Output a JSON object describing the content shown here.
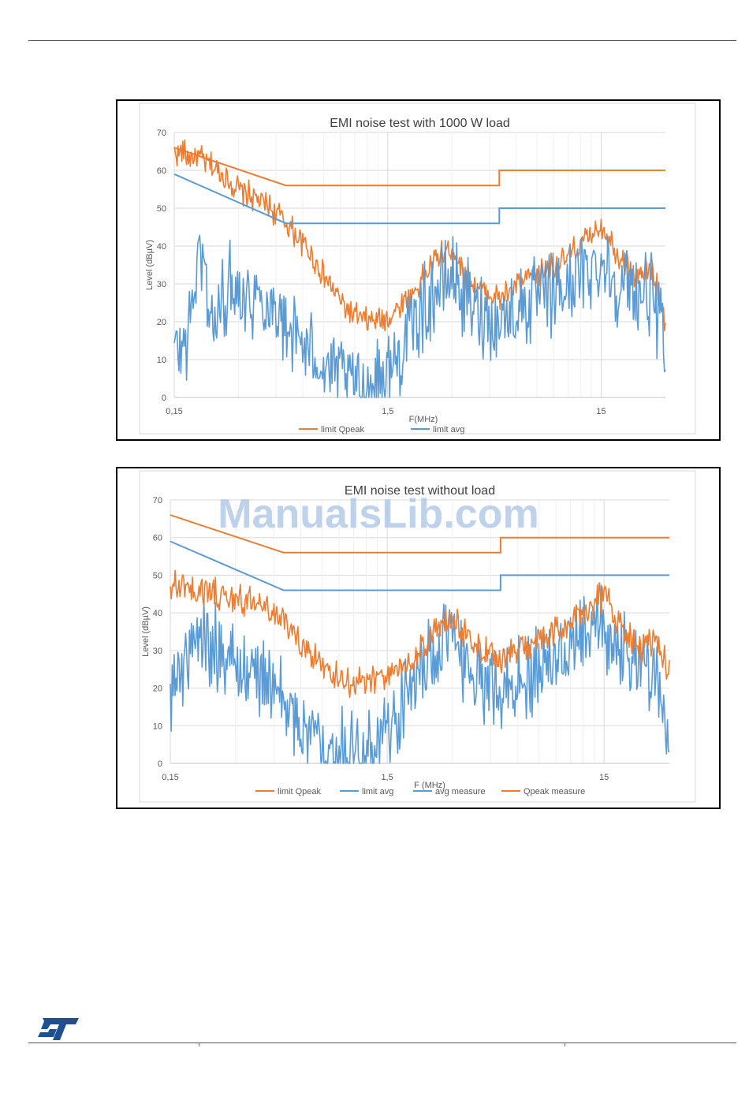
{
  "watermark": "ManualsLib.com",
  "logo": {
    "icon": "st-logo-icon",
    "color": "#1d4f91"
  },
  "colors": {
    "orange": "#ED7D31",
    "blue": "#5B9BD5"
  },
  "chart_data": [
    {
      "type": "line",
      "title": "EMI noise test with 1000 W load",
      "xlabel": "F(MHz)",
      "ylabel": "Level (dBµV)",
      "x_scale": "log",
      "xlim": [
        0.15,
        30
      ],
      "ylim": [
        0,
        70
      ],
      "yticks": [
        "0",
        "10",
        "20",
        "30",
        "40",
        "50",
        "60",
        "70"
      ],
      "xticks": [
        {
          "value": 0.15,
          "label": "0,15"
        },
        {
          "value": 1.5,
          "label": "1,5"
        },
        {
          "value": 15,
          "label": "15"
        }
      ],
      "grid": true,
      "legend_position": "bottom",
      "series": [
        {
          "name": "limit Qpeak",
          "color": "#ED7D31",
          "points": [
            [
              0.15,
              66
            ],
            [
              0.5,
              56
            ],
            [
              5,
              56
            ],
            [
              5,
              60
            ],
            [
              30,
              60
            ]
          ]
        },
        {
          "name": "limit avg",
          "color": "#5B9BD5",
          "points": [
            [
              0.15,
              59
            ],
            [
              0.5,
              46
            ],
            [
              5,
              46
            ],
            [
              5,
              50
            ],
            [
              30,
              50
            ]
          ]
        },
        {
          "color": "#ED7D31",
          "noisy": true,
          "spread": 8,
          "points": [
            [
              0.15,
              65
            ],
            [
              0.2,
              63
            ],
            [
              0.25,
              59
            ],
            [
              0.3,
              55
            ],
            [
              0.35,
              53
            ],
            [
              0.45,
              49
            ],
            [
              0.6,
              41
            ],
            [
              0.8,
              30
            ],
            [
              1.0,
              22
            ],
            [
              1.2,
              20
            ],
            [
              1.5,
              21
            ],
            [
              2,
              28
            ],
            [
              2.5,
              36
            ],
            [
              3,
              40
            ],
            [
              3.5,
              32
            ],
            [
              4,
              29
            ],
            [
              5,
              26
            ],
            [
              7,
              32
            ],
            [
              10,
              36
            ],
            [
              13,
              42
            ],
            [
              15,
              46
            ],
            [
              18,
              38
            ],
            [
              22,
              32
            ],
            [
              26,
              34
            ],
            [
              30,
              20
            ]
          ]
        },
        {
          "color": "#5B9BD5",
          "noisy": true,
          "spread": 24,
          "points": [
            [
              0.15,
              12
            ],
            [
              0.17,
              15
            ],
            [
              0.2,
              40
            ],
            [
              0.23,
              18
            ],
            [
              0.27,
              30
            ],
            [
              0.3,
              28
            ],
            [
              0.4,
              26
            ],
            [
              0.5,
              20
            ],
            [
              0.6,
              14
            ],
            [
              0.8,
              8
            ],
            [
              1.0,
              4
            ],
            [
              1.3,
              3
            ],
            [
              1.6,
              8
            ],
            [
              2,
              20
            ],
            [
              2.5,
              28
            ],
            [
              3,
              32
            ],
            [
              3.5,
              26
            ],
            [
              4,
              22
            ],
            [
              5,
              20
            ],
            [
              7,
              25
            ],
            [
              10,
              28
            ],
            [
              13,
              34
            ],
            [
              15,
              36
            ],
            [
              18,
              30
            ],
            [
              22,
              27
            ],
            [
              26,
              28
            ],
            [
              30,
              12
            ]
          ]
        }
      ]
    },
    {
      "type": "line",
      "title": "EMI noise test without load",
      "xlabel": "F (MHz)",
      "ylabel": "Level (dBµV)",
      "x_scale": "log",
      "xlim": [
        0.15,
        30
      ],
      "ylim": [
        0,
        70
      ],
      "yticks": [
        "0",
        "10",
        "20",
        "30",
        "40",
        "50",
        "60",
        "70"
      ],
      "xticks": [
        {
          "value": 0.15,
          "label": "0,15"
        },
        {
          "value": 1.5,
          "label": "1,5"
        },
        {
          "value": 15,
          "label": "15"
        }
      ],
      "grid": true,
      "legend_position": "bottom",
      "series": [
        {
          "name": "limit Qpeak",
          "color": "#ED7D31",
          "points": [
            [
              0.15,
              66
            ],
            [
              0.5,
              56
            ],
            [
              5,
              56
            ],
            [
              5,
              60
            ],
            [
              30,
              60
            ]
          ]
        },
        {
          "name": "limit avg",
          "color": "#5B9BD5",
          "points": [
            [
              0.15,
              59
            ],
            [
              0.5,
              46
            ],
            [
              5,
              46
            ],
            [
              5,
              50
            ],
            [
              30,
              50
            ]
          ]
        },
        {
          "name": "avg measure",
          "color": "#5B9BD5",
          "noisy": true,
          "spread": 24,
          "points": [
            [
              0.15,
              20
            ],
            [
              0.2,
              35
            ],
            [
              0.25,
              30
            ],
            [
              0.3,
              26
            ],
            [
              0.4,
              22
            ],
            [
              0.5,
              16
            ],
            [
              0.6,
              10
            ],
            [
              0.8,
              6
            ],
            [
              1.0,
              3
            ],
            [
              1.3,
              4
            ],
            [
              1.6,
              10
            ],
            [
              2,
              22
            ],
            [
              2.5,
              30
            ],
            [
              3,
              34
            ],
            [
              3.5,
              26
            ],
            [
              4,
              22
            ],
            [
              5,
              20
            ],
            [
              7,
              24
            ],
            [
              10,
              28
            ],
            [
              13,
              34
            ],
            [
              15,
              36
            ],
            [
              18,
              30
            ],
            [
              22,
              25
            ],
            [
              26,
              26
            ],
            [
              30,
              8
            ]
          ]
        },
        {
          "name": "Qpeak measure",
          "color": "#ED7D31",
          "noisy": true,
          "spread": 9,
          "points": [
            [
              0.15,
              47
            ],
            [
              0.2,
              46
            ],
            [
              0.3,
              44
            ],
            [
              0.4,
              42
            ],
            [
              0.5,
              38
            ],
            [
              0.6,
              32
            ],
            [
              0.8,
              24
            ],
            [
              1.0,
              21
            ],
            [
              1.5,
              23
            ],
            [
              2,
              28
            ],
            [
              2.5,
              35
            ],
            [
              3,
              38
            ],
            [
              3.5,
              34
            ],
            [
              4,
              30
            ],
            [
              5,
              28
            ],
            [
              7,
              32
            ],
            [
              10,
              36
            ],
            [
              13,
              42
            ],
            [
              15,
              45
            ],
            [
              18,
              36
            ],
            [
              22,
              30
            ],
            [
              26,
              32
            ],
            [
              30,
              25
            ]
          ]
        }
      ]
    }
  ]
}
